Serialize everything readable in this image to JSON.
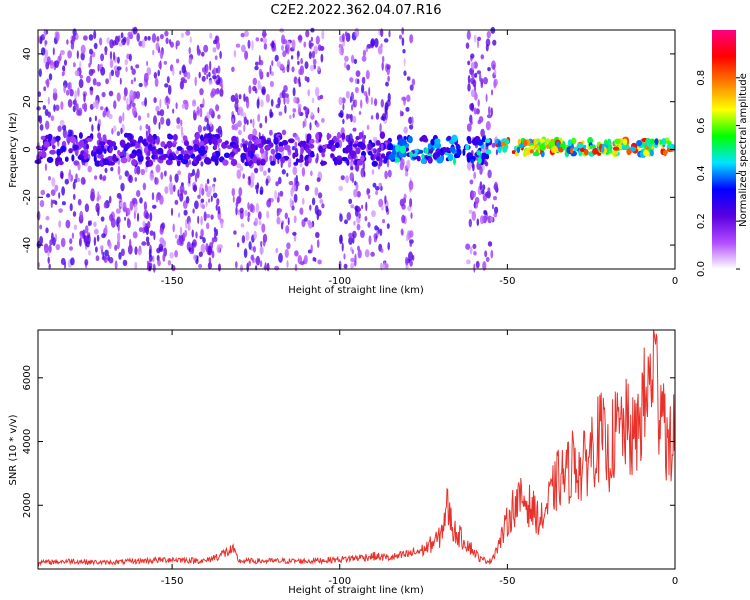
{
  "title": "C2E2.2022.362.04.07.R16",
  "chart_data": [
    {
      "type": "heatmap",
      "title": "C2E2.2022.362.04.07.R16",
      "xlabel": "Height of straight line (km)",
      "ylabel": "Frequency (Hz)",
      "xlim": [
        -190,
        0
      ],
      "ylim": [
        -50,
        50
      ],
      "xticks": [
        -150,
        -100,
        -50,
        0
      ],
      "yticks": [
        -40,
        -20,
        0,
        20,
        40
      ],
      "colorbar": {
        "label": "Normalized spectral amplitude",
        "range": [
          0.0,
          1.0
        ],
        "ticks": [
          0.0,
          0.2,
          0.4,
          0.6,
          0.8
        ],
        "colormap": [
          "#ffffff",
          "#b04cff",
          "#5a00e0",
          "#0000ff",
          "#00e5ff",
          "#00ff00",
          "#ffff00",
          "#ff7f00",
          "#ff0000",
          "#ff0080"
        ]
      },
      "description_series": [
        {
          "x_range": [
            -190,
            -85
          ],
          "center_freq_hz": 0,
          "band_hz": 6,
          "peak_amplitude": 0.3
        },
        {
          "x_range": [
            -85,
            -55
          ],
          "center_freq_hz": 0,
          "band_hz": 5,
          "peak_amplitude": 0.5
        },
        {
          "x_range": [
            -53,
            0
          ],
          "center_freq_hz": 1,
          "band_hz": 3,
          "peak_amplitude": 0.9
        }
      ]
    },
    {
      "type": "line",
      "xlabel": "Height of straight line (km)",
      "ylabel": "SNR (10 * v/v)",
      "xlim": [
        -190,
        0
      ],
      "ylim": [
        0,
        7500
      ],
      "xticks": [
        -150,
        -100,
        -50,
        0
      ],
      "yticks": [
        2000,
        4000,
        6000
      ],
      "line_color": "#e8312a",
      "x": [
        -190,
        -180,
        -170,
        -160,
        -150,
        -140,
        -132,
        -130,
        -120,
        -110,
        -100,
        -95,
        -90,
        -85,
        -80,
        -75,
        -70,
        -68,
        -66,
        -62,
        -58,
        -55,
        -52,
        -50,
        -48,
        -45,
        -42,
        -40,
        -38,
        -35,
        -32,
        -30,
        -28,
        -25,
        -22,
        -20,
        -18,
        -15,
        -12,
        -10,
        -8,
        -6,
        -5,
        -4,
        -2,
        0
      ],
      "y": [
        200,
        250,
        200,
        250,
        300,
        250,
        600,
        250,
        250,
        250,
        300,
        350,
        400,
        350,
        450,
        600,
        1000,
        2000,
        1200,
        800,
        300,
        250,
        900,
        1500,
        2000,
        2200,
        1800,
        1500,
        2000,
        2800,
        3000,
        3500,
        3000,
        3800,
        4200,
        3500,
        4200,
        4500,
        4000,
        5000,
        5500,
        7000,
        5000,
        6000,
        3500,
        4500
      ]
    }
  ]
}
